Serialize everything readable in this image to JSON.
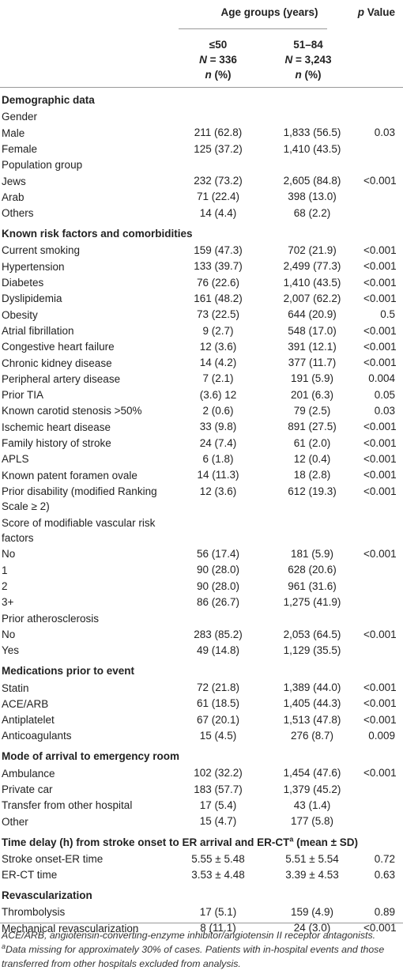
{
  "header": {
    "group": "Age groups (years)",
    "p_symbol": "p",
    "p_rest": "Value",
    "columns": [
      {
        "range": "≤50",
        "N_symbol": "N",
        "N_value": "= 336",
        "n_symbol": "n",
        "n_rest": "(%)"
      },
      {
        "range": "51–84",
        "N_symbol": "N",
        "N_value": "= 3,243",
        "n_symbol": "n",
        "n_rest": "(%)"
      }
    ]
  },
  "sections": [
    {
      "title": "Demographic data",
      "rows": [
        [
          "Gender"
        ],
        [
          "Male",
          "211 (62.8)",
          "1,833 (56.5)",
          "0.03"
        ],
        [
          "Female",
          "125 (37.2)",
          "1,410 (43.5)"
        ],
        [
          "Population group"
        ],
        [
          "Jews",
          "232 (73.2)",
          "2,605 (84.8)",
          "<0.001"
        ],
        [
          "Arab",
          "71 (22.4)",
          "398 (13.0)"
        ],
        [
          "Others",
          "14 (4.4)",
          "68 (2.2)"
        ]
      ]
    },
    {
      "title": "Known risk factors and comorbidities",
      "rows": [
        [
          "Current smoking",
          "159 (47.3)",
          "702 (21.9)",
          "<0.001"
        ],
        [
          "Hypertension",
          "133 (39.7)",
          "2,499 (77.3)",
          "<0.001"
        ],
        [
          "Diabetes",
          "76 (22.6)",
          "1,410 (43.5)",
          "<0.001"
        ],
        [
          "Dyslipidemia",
          "161 (48.2)",
          "2,007 (62.2)",
          "<0.001"
        ],
        [
          "Obesity",
          "73 (22.5)",
          "644 (20.9)",
          "0.5"
        ],
        [
          "Atrial fibrillation",
          "9 (2.7)",
          "548 (17.0)",
          "<0.001"
        ],
        [
          "Congestive heart failure",
          "12 (3.6)",
          "391 (12.1)",
          "<0.001"
        ],
        [
          "Chronic kidney disease",
          "14 (4.2)",
          "377 (11.7)",
          "<0.001"
        ],
        [
          "Peripheral artery disease",
          "7 (2.1)",
          "191 (5.9)",
          "0.004"
        ],
        [
          "Prior TIA",
          "(3.6) 12",
          "201 (6.3)",
          "0.05"
        ],
        [
          "Known carotid stenosis >50%",
          "2 (0.6)",
          "79 (2.5)",
          "0.03"
        ],
        [
          "Ischemic heart disease",
          "33 (9.8)",
          "891 (27.5)",
          "<0.001"
        ],
        [
          "Family history of stroke",
          "24 (7.4)",
          "61 (2.0)",
          "<0.001"
        ],
        [
          "APLS",
          "6 (1.8)",
          "12 (0.4)",
          "<0.001"
        ],
        [
          "Known patent foramen ovale",
          "14 (11.3)",
          "18 (2.8)",
          "<0.001"
        ],
        [
          "Prior disability (modified Ranking Scale ≥ 2)",
          "12 (3.6)",
          "612 (19.3)",
          "<0.001"
        ],
        [
          "Score of modifiable vascular risk factors"
        ],
        [
          "No",
          "56 (17.4)",
          "181 (5.9)",
          "<0.001"
        ],
        [
          "1",
          "90 (28.0)",
          "628 (20.6)"
        ],
        [
          "2",
          "90 (28.0)",
          "961 (31.6)"
        ],
        [
          "3+",
          "86 (26.7)",
          "1,275 (41.9)"
        ],
        [
          "Prior atherosclerosis"
        ],
        [
          "No",
          "283 (85.2)",
          "2,053 (64.5)",
          "<0.001"
        ],
        [
          "Yes",
          "49 (14.8)",
          "1,129 (35.5)"
        ]
      ]
    },
    {
      "title": "Medications prior to event",
      "rows": [
        [
          "Statin",
          "72 (21.8)",
          "1,389 (44.0)",
          "<0.001"
        ],
        [
          "ACE/ARB",
          "61 (18.5)",
          "1,405 (44.3)",
          "<0.001"
        ],
        [
          "Antiplatelet",
          "67 (20.1)",
          "1,513 (47.8)",
          "<0.001"
        ],
        [
          "Anticoagulants",
          "15 (4.5)",
          "276 (8.7)",
          "0.009"
        ]
      ]
    },
    {
      "title": "Mode of arrival to emergency room",
      "rows": [
        [
          "Ambulance",
          "102 (32.2)",
          "1,454 (47.6)",
          "<0.001"
        ],
        [
          "Private car",
          "183 (57.7)",
          "1,379 (45.2)"
        ],
        [
          "Transfer from other hospital",
          "17 (5.4)",
          "43 (1.4)"
        ],
        [
          "Other",
          "15 (4.7)",
          "177 (5.8)"
        ]
      ]
    },
    {
      "title": "Time delay (h) from stroke onset to ER arrival and ER-CT",
      "sup": "a",
      "title_end": "(mean ± SD)",
      "rows": [
        [
          "Stroke onset-ER time",
          "5.55 ± 5.48",
          "5.51 ± 5.54",
          "0.72"
        ],
        [
          "ER-CT time",
          "3.53 ± 4.48",
          "3.39 ± 4.53",
          "0.63"
        ]
      ]
    },
    {
      "title": "Revascularization",
      "rows": [
        [
          "Thrombolysis",
          "17 (5.1)",
          "159 (4.9)",
          "0.89"
        ],
        [
          "Mechanical revascularization",
          "8 (11.1)",
          "24 (3.0)",
          "<0.001"
        ]
      ]
    }
  ],
  "footnotes": [
    {
      "text": "ACE/ARB, angiotensin-converting-enzyme inhibitor/angiotensin II receptor antagonists."
    },
    {
      "sup": "a",
      "text": "Data missing for approximately 30% of cases. Patients with in-hospital events and those transferred from other hospitals excluded from analysis."
    }
  ]
}
